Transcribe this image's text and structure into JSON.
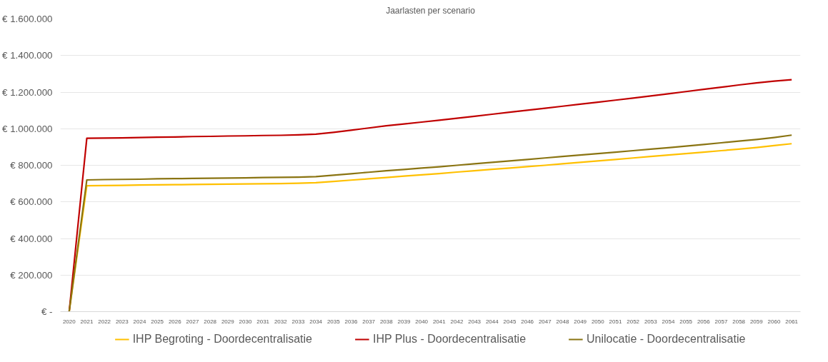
{
  "chart_data": {
    "type": "line",
    "title": "Jaarlasten per scenario",
    "categories": [
      "2020",
      "2021",
      "2022",
      "2023",
      "2024",
      "2025",
      "2026",
      "2027",
      "2028",
      "2029",
      "2030",
      "2031",
      "2032",
      "2033",
      "2034",
      "2035",
      "2036",
      "2037",
      "2038",
      "2039",
      "2040",
      "2041",
      "2042",
      "2043",
      "2044",
      "2045",
      "2046",
      "2047",
      "2048",
      "2049",
      "2050",
      "2051",
      "2052",
      "2053",
      "2054",
      "2055",
      "2056",
      "2057",
      "2058",
      "2059",
      "2060",
      "2061"
    ],
    "series": [
      {
        "name": "IHP Begroting - Doordecentralisatie",
        "color": "#ffc000",
        "values": [
          0,
          688000,
          689000,
          690000,
          692000,
          693000,
          694000,
          695000,
          696000,
          697000,
          698000,
          699000,
          700000,
          702000,
          705000,
          712000,
          719000,
          726000,
          733000,
          741000,
          748000,
          755000,
          763000,
          770000,
          778000,
          785000,
          793000,
          800000,
          808000,
          816000,
          824000,
          832000,
          840000,
          848000,
          856000,
          864000,
          872000,
          880000,
          888000,
          897000,
          908000,
          918000
        ]
      },
      {
        "name": "IHP Plus - Doordecentralisatie",
        "color": "#c00000",
        "values": [
          0,
          948000,
          949000,
          950000,
          952000,
          954000,
          955000,
          957000,
          958000,
          960000,
          961000,
          963000,
          964000,
          966000,
          970000,
          980000,
          992000,
          1004000,
          1016000,
          1026000,
          1036000,
          1046000,
          1057000,
          1068000,
          1079000,
          1090000,
          1101000,
          1112000,
          1123000,
          1134000,
          1145000,
          1156000,
          1167000,
          1179000,
          1191000,
          1203000,
          1215000,
          1227000,
          1239000,
          1250000,
          1260000,
          1268000
        ]
      },
      {
        "name": "Unilocatie - Doordecentralisatie",
        "color": "#8a7412",
        "values": [
          0,
          720000,
          722000,
          723000,
          724000,
          726000,
          727000,
          728000,
          729000,
          730000,
          731000,
          733000,
          734000,
          735000,
          738000,
          746000,
          754000,
          762000,
          770000,
          777000,
          785000,
          792000,
          800000,
          808000,
          816000,
          824000,
          832000,
          840000,
          848000,
          856000,
          864000,
          872000,
          880000,
          888000,
          896000,
          905000,
          914000,
          923000,
          932000,
          941000,
          952000,
          965000
        ]
      }
    ],
    "ylim": [
      0,
      1600000
    ],
    "yticks": [
      {
        "value": 0,
        "label": "€ -"
      },
      {
        "value": 200000,
        "label": "€ 200.000"
      },
      {
        "value": 400000,
        "label": "€ 400.000"
      },
      {
        "value": 600000,
        "label": "€ 600.000"
      },
      {
        "value": 800000,
        "label": "€ 800.000"
      },
      {
        "value": 1000000,
        "label": "€ 1.000.000"
      },
      {
        "value": 1200000,
        "label": "€ 1.200.000"
      },
      {
        "value": 1400000,
        "label": "€ 1.400.000"
      },
      {
        "value": 1600000,
        "label": "€ 1.600.000"
      }
    ],
    "grid": "y",
    "legend": "bottom",
    "marker": "none",
    "line_style": "solid"
  }
}
